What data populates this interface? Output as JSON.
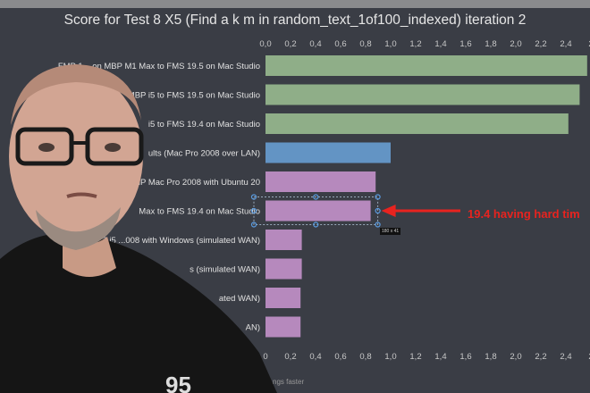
{
  "chart_data": {
    "type": "bar",
    "orientation": "horizontal",
    "title": "Score for Test 8 X5 (Find a k m in random_text_1of100_indexed) iteration 2",
    "xlabel": "ngs faster",
    "xlim": [
      0,
      2.6
    ],
    "ticks": [
      "0,0",
      "0,2",
      "0,4",
      "0,6",
      "0,8",
      "1,0",
      "1,2",
      "1,4",
      "1,6",
      "1,8",
      "2,0",
      "2,2",
      "2,4",
      "2"
    ],
    "bottom_ticks": [
      "0",
      "0,2",
      "0,4",
      "0,6",
      "0,8",
      "1,0",
      "1,2",
      "1,4",
      "1,6",
      "1,8",
      "2,0",
      "2,2",
      "2,4",
      "2"
    ],
    "categories": [
      "FMP 1... on MBP M1 Max to FMS 19.5 on Mac Studio",
      "MBP i5 to FMS 19.5 on Mac Studio",
      "i5 to FMS 19.4 on Mac Studio",
      "ults (Mac Pro 2008 over LAN)",
      "MP Mac Pro 2008 with Ubuntu 20",
      "Max to FMS 19.4 on Mac Studio",
      "P i5 ...008 with Windows (simulated WAN)",
      "s (simulated WAN)",
      "ated WAN)",
      "AN)"
    ],
    "values": [
      2.57,
      2.51,
      2.42,
      1.0,
      0.88,
      0.84,
      0.29,
      0.29,
      0.28,
      0.28
    ],
    "colors": [
      "#8fae88",
      "#8fae88",
      "#8fae88",
      "#6394c4",
      "#b689bd",
      "#b689bd",
      "#b689bd",
      "#b689bd",
      "#b689bd",
      "#b689bd"
    ],
    "grid": false,
    "selected_index": 5
  },
  "annotation": {
    "text": "19.4 having hard tim",
    "color": "#e8231f"
  },
  "selection_size": "180 x 41",
  "colors": {
    "background": "#3a3d45",
    "text": "#e6e6e6"
  }
}
